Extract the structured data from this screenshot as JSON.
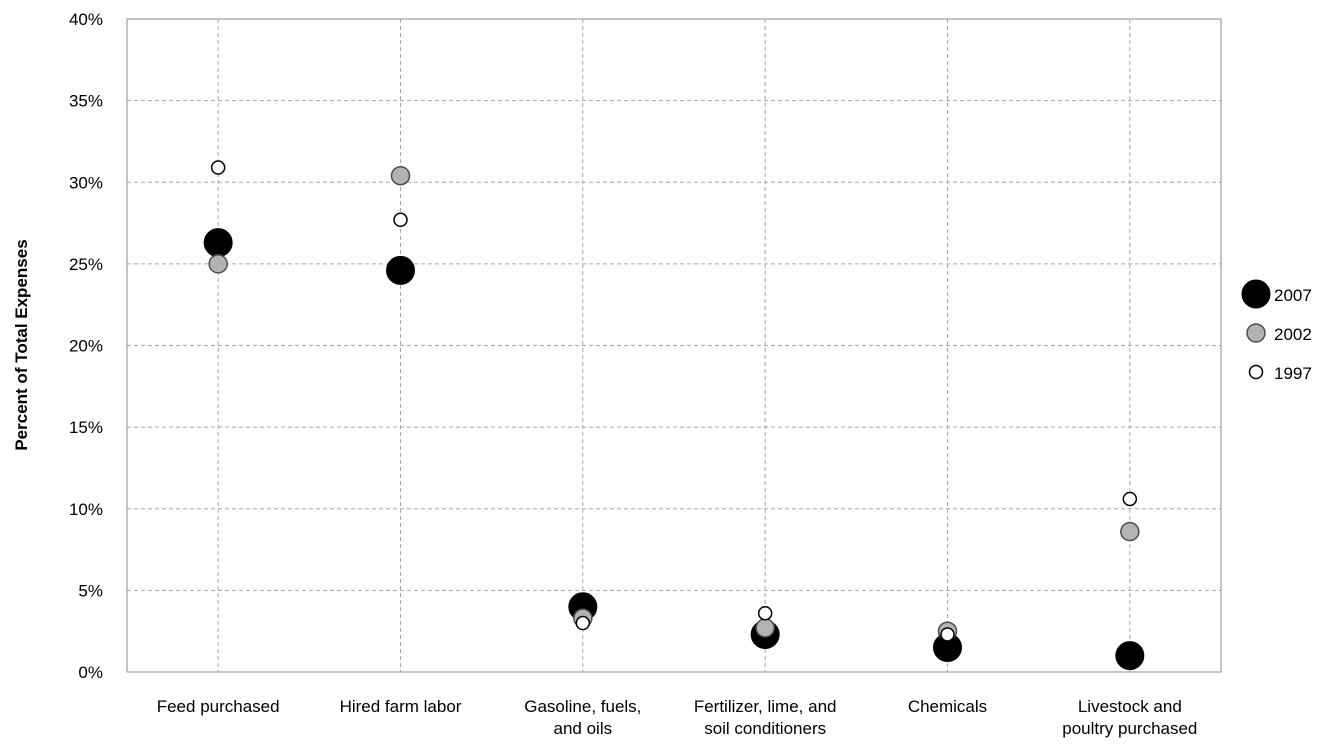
{
  "chart_data": {
    "type": "scatter",
    "title": "",
    "xlabel": "",
    "ylabel": "Percent of Total Expenses",
    "ylim": [
      0,
      40
    ],
    "yticks": [
      "0%",
      "5%",
      "10%",
      "15%",
      "20%",
      "25%",
      "30%",
      "35%",
      "40%"
    ],
    "grid": true,
    "legend_position": "right",
    "categories": [
      [
        "Feed purchased"
      ],
      [
        "Hired farm labor"
      ],
      [
        "Gasoline, fuels,",
        "and oils"
      ],
      [
        "Fertilizer, lime, and",
        "soil conditioners"
      ],
      [
        "Chemicals"
      ],
      [
        "Livestock and",
        "poultry purchased"
      ]
    ],
    "series": [
      {
        "name": "1997",
        "fill": "#ffffff",
        "values": [
          30.9,
          27.7,
          3.0,
          3.6,
          2.3,
          10.6
        ]
      },
      {
        "name": "2002",
        "fill": "#b3b3b3",
        "values": [
          25.0,
          30.4,
          3.3,
          2.7,
          2.5,
          8.6
        ]
      },
      {
        "name": "2007",
        "fill": "#000000",
        "values": [
          26.3,
          24.6,
          4.0,
          2.3,
          1.5,
          1.0
        ]
      }
    ],
    "legend_order": [
      "2007",
      "2002",
      "1997"
    ]
  }
}
